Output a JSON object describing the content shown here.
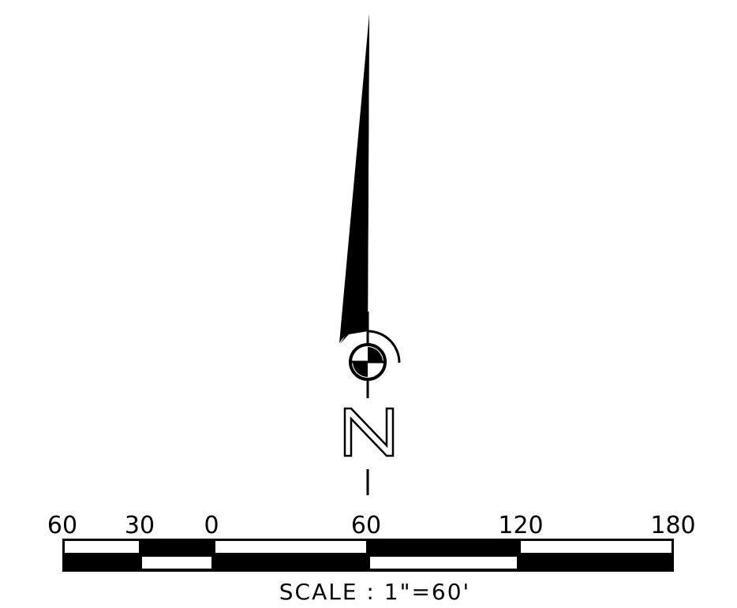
{
  "north_arrow": {
    "letter": "N"
  },
  "scale_bar": {
    "tick_labels": [
      "60",
      "30",
      "0",
      "60",
      "120",
      "180"
    ],
    "caption": "SCALE : 1\"=60'"
  },
  "colors": {
    "ink": "#000000",
    "paper": "#ffffff"
  }
}
